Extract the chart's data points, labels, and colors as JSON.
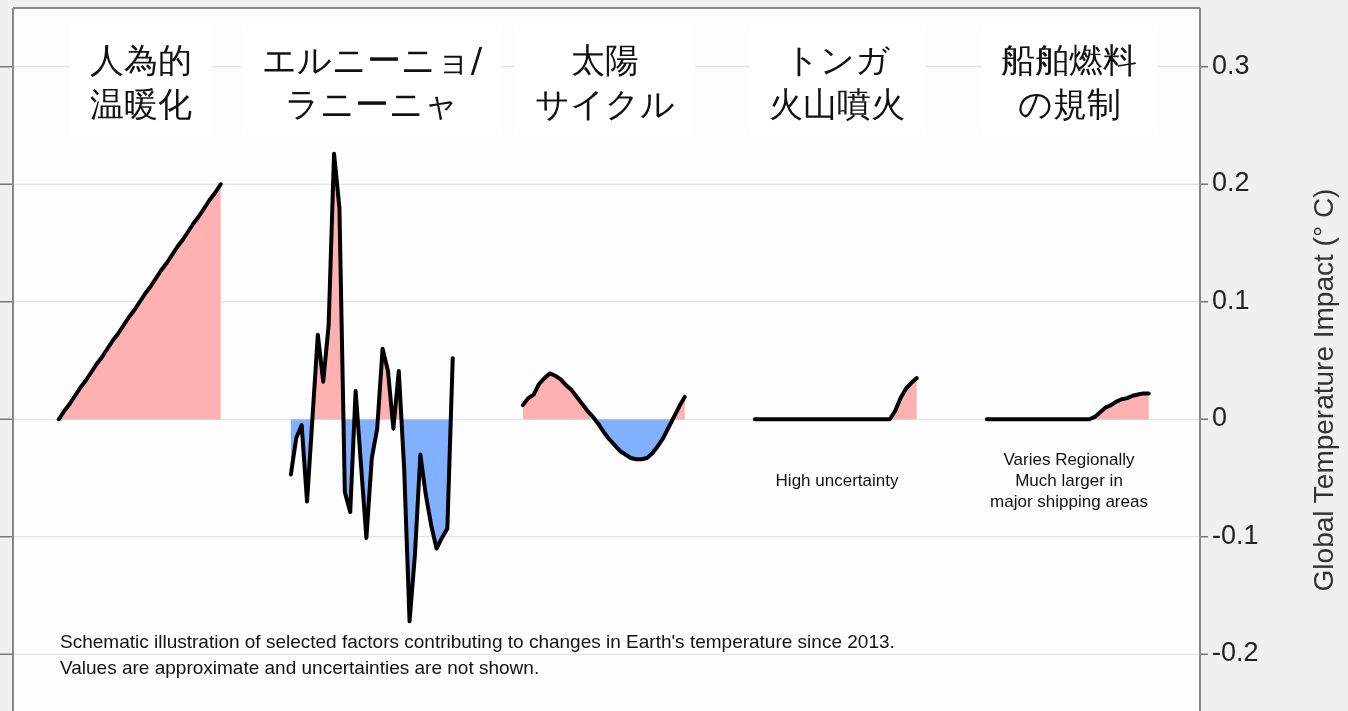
{
  "chart_data": {
    "type": "area",
    "ylabel": "Global Temperature Impact (° C)",
    "categories": [
      null,
      null,
      null,
      null,
      null,
      null,
      null,
      null,
      null,
      null,
      null,
      null,
      null,
      null,
      null,
      null,
      null,
      null,
      null,
      null,
      null,
      null,
      null,
      null,
      null,
      null,
      null,
      null,
      null,
      null,
      null,
      null,
      null,
      null,
      null,
      null,
      null,
      null,
      null,
      null,
      null,
      null,
      null,
      null,
      null,
      null,
      null,
      null,
      null,
      null,
      null,
      null,
      null,
      null,
      null,
      null,
      null,
      null,
      null,
      null,
      null,
      null,
      null,
      null,
      null,
      null,
      null,
      null,
      null,
      null,
      null,
      null,
      null,
      null,
      null,
      null,
      null,
      null,
      null,
      null,
      null,
      null,
      null,
      null,
      null,
      null,
      null,
      null,
      null,
      null,
      null,
      null,
      null,
      null,
      null,
      null,
      null,
      null,
      null,
      null,
      null,
      null,
      null,
      null,
      null,
      null,
      null,
      null,
      null,
      null,
      null,
      null,
      null,
      null,
      null,
      null,
      null,
      null,
      null,
      null,
      null,
      null,
      null,
      null,
      null,
      null,
      null,
      null,
      null,
      null,
      null,
      null,
      null,
      null,
      null,
      null,
      null,
      null,
      null,
      null,
      null,
      null,
      null,
      null,
      null,
      null,
      null,
      null,
      null,
      null,
      null,
      null,
      null,
      null,
      null,
      null,
      null,
      null,
      null,
      null,
      null,
      null,
      null,
      null,
      null,
      null,
      null,
      null,
      null,
      null,
      null,
      null,
      null,
      null,
      null,
      null,
      null,
      null,
      null,
      null,
      null,
      null,
      null,
      null,
      null,
      null,
      null,
      null,
      null,
      null,
      null,
      null,
      null,
      null,
      null,
      null,
      null,
      null,
      null,
      null,
      null,
      null,
      null,
      null,
      null,
      null,
      null,
      null,
      null,
      null,
      null,
      null,
      null,
      null,
      null,
      null,
      null,
      null,
      null,
      null
    ],
    "colors": [
      "#ffb0b0",
      "#80b0ff"
    ],
    "series": [
      {
        "values": [
          null,
          null,
          null,
          null,
          null,
          null,
          null,
          null,
          0,
          0.007,
          0.013,
          0.02,
          0.027,
          0.033,
          0.04,
          0.047,
          0.053,
          0.06,
          0.067,
          0.073,
          0.08,
          0.087,
          0.093,
          0.1,
          0.107,
          0.113,
          0.12,
          0.127,
          0.133,
          0.14,
          0.147,
          0.153,
          0.16,
          0.167,
          0.173,
          0.18,
          0.187,
          0.193,
          0.2,
          null,
          null,
          null,
          null,
          null,
          null,
          null,
          null,
          null,
          null,
          null,
          null,
          null,
          null,
          null,
          null,
          null,
          null,
          null,
          null,
          null,
          null,
          null,
          null,
          null,
          null,
          null,
          null,
          null,
          null,
          null,
          null,
          null,
          null,
          null,
          null,
          null,
          null,
          null,
          null,
          null,
          null,
          null,
          null,
          null,
          null,
          null,
          null,
          null,
          null,
          null,
          null,
          null,
          null,
          null,
          null,
          null,
          null,
          null,
          null,
          null,
          null,
          null,
          null,
          null,
          null,
          null,
          null,
          null,
          null,
          null,
          null,
          null,
          null,
          null,
          null,
          null,
          null,
          null,
          null,
          null,
          null,
          null,
          null,
          null,
          null,
          null,
          null,
          null,
          null,
          null,
          null,
          null,
          null,
          null,
          null,
          null,
          null,
          null,
          null,
          null,
          null,
          null,
          null,
          null,
          null,
          null,
          null,
          null,
          null,
          null,
          null,
          null,
          null,
          null,
          null,
          null,
          null,
          null,
          null,
          null,
          null,
          null,
          null,
          null,
          null,
          null,
          null,
          null,
          null,
          null,
          null,
          null,
          null,
          null,
          null,
          null,
          null,
          null,
          null,
          null,
          null,
          null,
          null,
          null,
          null,
          null,
          null,
          null,
          null,
          null,
          null,
          null,
          null,
          null,
          null,
          null,
          null,
          null,
          null,
          null,
          null,
          null,
          null,
          null,
          null,
          null,
          null,
          null,
          null,
          null,
          null,
          null,
          null,
          null,
          null,
          null,
          null,
          null,
          null,
          null
        ]
      },
      {
        "values": [
          null,
          null,
          null,
          null,
          null,
          null,
          null,
          null,
          null,
          null,
          null,
          null,
          null,
          null,
          null,
          null,
          null,
          null,
          null,
          null,
          null,
          null,
          null,
          null,
          null,
          null,
          null,
          null,
          null,
          null,
          null,
          null,
          null,
          null,
          null,
          null,
          null,
          null,
          null,
          null,
          null,
          null,
          null,
          null,
          null,
          null,
          null,
          null,
          null,
          null,
          null,
          -0.047,
          -0.016,
          -0.005,
          -0.07,
          0.001,
          0.072,
          0.032,
          0.08,
          0.226,
          0.18,
          -0.062,
          -0.079,
          0.024,
          -0.039,
          -0.101,
          -0.033,
          -0.008,
          0.06,
          0.041,
          -0.008,
          0.041,
          -0.042,
          -0.172,
          -0.115,
          -0.03,
          -0.064,
          -0.09,
          -0.11,
          -0.101,
          -0.093,
          0.052,
          null,
          null,
          null,
          null,
          null,
          null,
          null,
          null,
          null,
          null,
          null,
          null,
          null,
          null,
          null,
          null,
          null,
          null,
          null,
          null,
          null,
          null,
          null,
          null,
          null,
          null,
          null,
          null,
          null,
          null,
          null,
          null,
          null,
          null,
          null,
          null,
          null,
          null,
          null,
          null,
          null,
          null,
          null,
          null,
          null,
          null,
          null,
          null,
          null,
          null,
          null,
          null,
          null,
          null,
          null,
          null,
          null,
          null,
          null,
          null,
          null,
          null,
          null,
          null,
          null,
          null,
          null,
          null,
          null,
          null,
          null,
          null,
          null,
          null,
          null,
          null,
          null,
          null,
          null,
          null,
          null,
          null,
          null,
          null,
          null,
          null,
          null,
          null,
          null,
          null,
          null,
          null,
          null,
          null,
          null,
          null,
          null,
          null,
          null,
          null,
          null,
          null,
          null,
          null,
          null,
          null,
          null,
          null,
          null,
          null,
          null,
          null,
          null,
          null,
          null,
          null,
          null,
          null,
          null,
          null,
          null,
          null,
          null,
          null,
          null,
          null,
          null,
          null,
          null,
          null,
          null,
          null,
          null,
          null,
          null,
          null,
          null,
          null
        ]
      },
      {
        "values": [
          null,
          null,
          null,
          null,
          null,
          null,
          null,
          null,
          null,
          null,
          null,
          null,
          null,
          null,
          null,
          null,
          null,
          null,
          null,
          null,
          null,
          null,
          null,
          null,
          null,
          null,
          null,
          null,
          null,
          null,
          null,
          null,
          null,
          null,
          null,
          null,
          null,
          null,
          null,
          null,
          null,
          null,
          null,
          null,
          null,
          null,
          null,
          null,
          null,
          null,
          null,
          null,
          null,
          null,
          null,
          null,
          null,
          null,
          null,
          null,
          null,
          null,
          null,
          null,
          null,
          null,
          null,
          null,
          null,
          null,
          null,
          null,
          null,
          null,
          null,
          null,
          null,
          null,
          null,
          null,
          null,
          null,
          null,
          null,
          null,
          null,
          null,
          null,
          null,
          null,
          null,
          null,
          null,
          null,
          0.012,
          0.018,
          0.021,
          0.03,
          0.035,
          0.039,
          0.037,
          0.034,
          0.029,
          0.025,
          0.019,
          0.013,
          0.007,
          0.002,
          -0.004,
          -0.011,
          -0.017,
          -0.022,
          -0.027,
          -0.03,
          -0.033,
          -0.034,
          -0.034,
          -0.033,
          -0.029,
          -0.023,
          -0.016,
          -0.007,
          0.002,
          0.011,
          0.019,
          null,
          null,
          null,
          null,
          null,
          null,
          null,
          null,
          null,
          null,
          null,
          null,
          null,
          null,
          null,
          null,
          null,
          null,
          null,
          null,
          null,
          null,
          null,
          null,
          null,
          null,
          null,
          null,
          null,
          null,
          null,
          null,
          null,
          null,
          null,
          null,
          null,
          null,
          null,
          null,
          null,
          null,
          null,
          null,
          null,
          null,
          null,
          null,
          null,
          null,
          null,
          null,
          null,
          null,
          null,
          null,
          null,
          null,
          null,
          null,
          null,
          null,
          null,
          null,
          null,
          null,
          null,
          null,
          null,
          null,
          null,
          null,
          null,
          null,
          null,
          null,
          null,
          null,
          null,
          null,
          null,
          null,
          null,
          null,
          null,
          null,
          null,
          null,
          null,
          null,
          null,
          null,
          null,
          null,
          null
        ]
      },
      {
        "values": [
          null,
          null,
          null,
          null,
          null,
          null,
          null,
          null,
          null,
          null,
          null,
          null,
          null,
          null,
          null,
          null,
          null,
          null,
          null,
          null,
          null,
          null,
          null,
          null,
          null,
          null,
          null,
          null,
          null,
          null,
          null,
          null,
          null,
          null,
          null,
          null,
          null,
          null,
          null,
          null,
          null,
          null,
          null,
          null,
          null,
          null,
          null,
          null,
          null,
          null,
          null,
          null,
          null,
          null,
          null,
          null,
          null,
          null,
          null,
          null,
          null,
          null,
          null,
          null,
          null,
          null,
          null,
          null,
          null,
          null,
          null,
          null,
          null,
          null,
          null,
          null,
          null,
          null,
          null,
          null,
          null,
          null,
          null,
          null,
          null,
          null,
          null,
          null,
          null,
          null,
          null,
          null,
          null,
          null,
          null,
          null,
          null,
          null,
          null,
          null,
          null,
          null,
          null,
          null,
          null,
          null,
          null,
          null,
          null,
          null,
          null,
          null,
          null,
          null,
          null,
          null,
          null,
          null,
          null,
          null,
          null,
          null,
          null,
          null,
          null,
          null,
          null,
          null,
          null,
          null,
          null,
          null,
          null,
          null,
          null,
          null,
          null,
          0,
          0,
          0,
          0,
          0,
          0,
          0,
          0,
          0,
          0,
          0,
          0,
          0,
          0,
          0,
          0,
          0,
          0,
          0,
          0,
          0,
          0,
          0,
          0,
          0,
          0,
          0.007,
          0.018,
          0.026,
          0.031,
          0.035,
          null,
          null,
          null,
          null,
          null,
          null,
          null,
          null,
          null,
          null,
          null,
          null,
          null,
          null,
          null,
          null,
          null,
          null,
          null,
          null,
          null,
          null,
          null,
          null,
          null,
          null,
          null,
          null,
          null,
          null,
          null,
          null,
          null,
          null,
          null,
          null,
          null,
          null,
          null,
          null,
          null,
          null,
          null,
          null,
          null,
          null,
          null,
          null,
          null,
          null,
          null,
          null
        ]
      },
      {
        "values": [
          null,
          null,
          null,
          null,
          null,
          null,
          null,
          null,
          null,
          null,
          null,
          null,
          null,
          null,
          null,
          null,
          null,
          null,
          null,
          null,
          null,
          null,
          null,
          null,
          null,
          null,
          null,
          null,
          null,
          null,
          null,
          null,
          null,
          null,
          null,
          null,
          null,
          null,
          null,
          null,
          null,
          null,
          null,
          null,
          null,
          null,
          null,
          null,
          null,
          null,
          null,
          null,
          null,
          null,
          null,
          null,
          null,
          null,
          null,
          null,
          null,
          null,
          null,
          null,
          null,
          null,
          null,
          null,
          null,
          null,
          null,
          null,
          null,
          null,
          null,
          null,
          null,
          null,
          null,
          null,
          null,
          null,
          null,
          null,
          null,
          null,
          null,
          null,
          null,
          null,
          null,
          null,
          null,
          null,
          null,
          null,
          null,
          null,
          null,
          null,
          null,
          null,
          null,
          null,
          null,
          null,
          null,
          null,
          null,
          null,
          null,
          null,
          null,
          null,
          null,
          null,
          null,
          null,
          null,
          null,
          null,
          null,
          null,
          null,
          null,
          null,
          null,
          null,
          null,
          null,
          null,
          null,
          null,
          null,
          null,
          null,
          null,
          null,
          null,
          null,
          null,
          null,
          null,
          null,
          null,
          null,
          null,
          null,
          null,
          null,
          null,
          null,
          null,
          null,
          null,
          null,
          null,
          null,
          null,
          null,
          null,
          null,
          null,
          null,
          null,
          null,
          null,
          null,
          null,
          null,
          null,
          null,
          null,
          null,
          null,
          null,
          null,
          null,
          null,
          null,
          0,
          0,
          0,
          0,
          0,
          0,
          0,
          0,
          0,
          0,
          0,
          0,
          0,
          0,
          0,
          0,
          0,
          0,
          0,
          0,
          0.002,
          0.006,
          0.01,
          0.012,
          0.015,
          0.017,
          0.018,
          0.02,
          0.021,
          0.022,
          0.022,
          null,
          null,
          null,
          null,
          null,
          null,
          null,
          null,
          null
        ]
      }
    ],
    "ylim": [
      -0.25,
      0.35
    ],
    "yticks": [
      -0.2,
      -0.1,
      0,
      0.1,
      0.2,
      0.3
    ],
    "grid": "y",
    "annotations": [
      "人為的温暖化",
      "エルニーニョ/ラニーニャ",
      "太陽サイクル",
      "トンガ火山噴火",
      "船舶燃料の規制",
      "High uncertainty",
      "Varies Regionally\nMuch larger in\nmajor shipping areas",
      "Schematic illustration of selected factors contributing to changes in Earth's temperature since 2013.\nValues are approximate and uncertainties are not shown."
    ]
  }
}
